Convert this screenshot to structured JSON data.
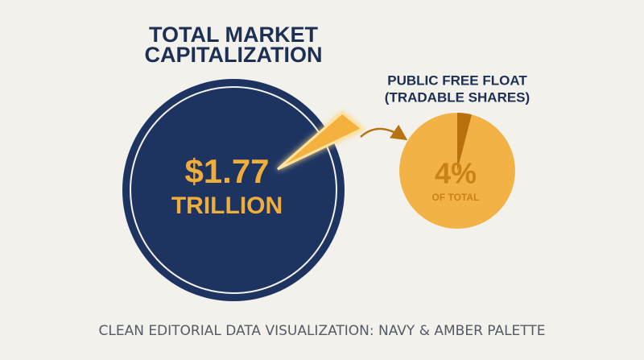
{
  "title_lines": [
    "TOTAL MARKET",
    "CAPITALIZATION"
  ],
  "total": {
    "label_lines": [
      "$1.77",
      "TRILLION"
    ]
  },
  "free_float": {
    "title_lines": [
      "PUBLIC FREE FLOAT",
      "(TRADABLE SHARES)"
    ],
    "share": {
      "value": 4,
      "label": "4%"
    },
    "caption": "OF TOTAL"
  },
  "footer": "CLEAN EDITORIAL DATA VISUALIZATION: NAVY & AMBER PALETTE"
}
